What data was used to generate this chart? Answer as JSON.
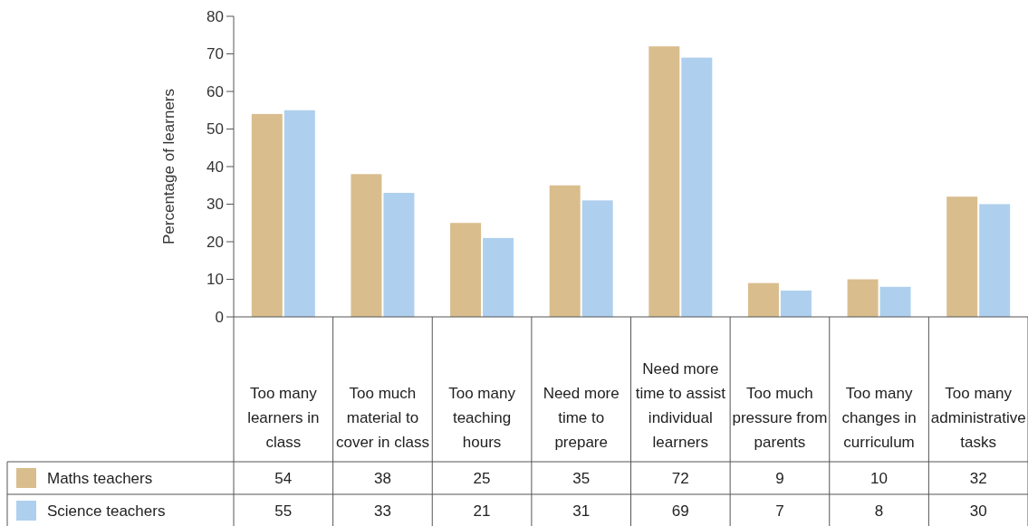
{
  "chart_data": {
    "type": "bar",
    "ylabel": "Percentage of learners",
    "categories": [
      "Too many learners in class",
      "Too much material to cover in class",
      "Too many teaching hours",
      "Need more time to prepare",
      "Need more time to assist individual learners",
      "Too much pressure from parents",
      "Too many changes in curriculum",
      "Too many administrative tasks"
    ],
    "series": [
      {
        "name": "Maths teachers",
        "color": "#d9bd8d",
        "values": [
          54,
          38,
          25,
          35,
          72,
          9,
          10,
          32
        ]
      },
      {
        "name": "Science teachers",
        "color": "#aed0ee",
        "values": [
          55,
          33,
          21,
          31,
          69,
          7,
          8,
          30
        ]
      }
    ],
    "ylim": [
      0,
      80
    ],
    "yticks": [
      0,
      10,
      20,
      30,
      40,
      50,
      60,
      70,
      80
    ],
    "grid": false,
    "legend": "bottom",
    "data_labels": true
  }
}
